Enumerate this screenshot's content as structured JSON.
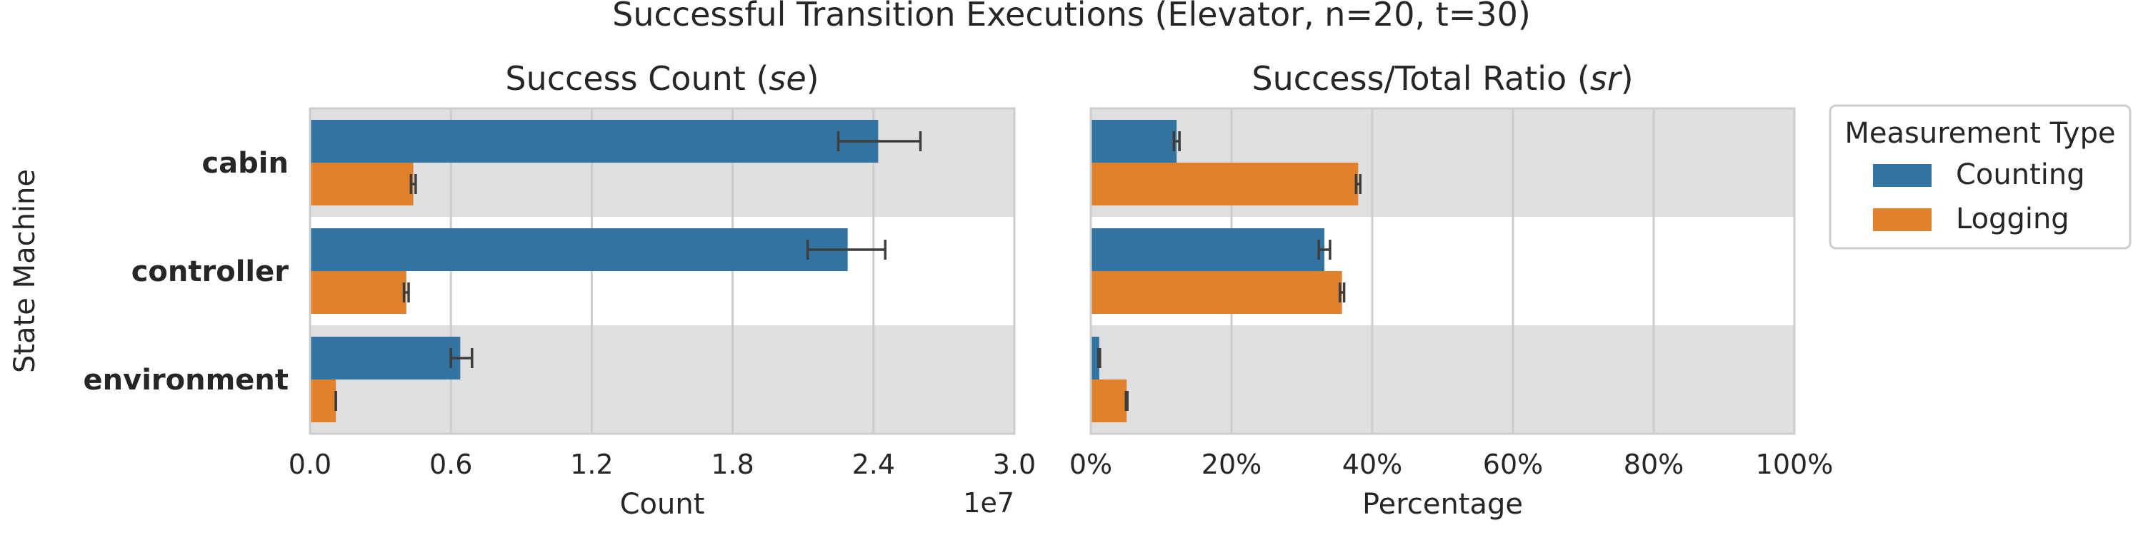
{
  "chart_data": {
    "suptitle": "Successful Transition Executions (Elevator, n=20, t=30)",
    "y_axis_label": "State Machine",
    "categories": [
      "cabin",
      "controller",
      "environment"
    ],
    "legend": {
      "title": "Measurement Type",
      "placement": "right",
      "entries": [
        {
          "label": "Counting",
          "color": "#3274a1"
        },
        {
          "label": "Logging",
          "color": "#e1812c"
        }
      ]
    },
    "panels": [
      {
        "type": "bar",
        "orientation": "horizontal",
        "title_prefix": "Success Count (",
        "title_italic": "se",
        "title_suffix": ")",
        "xlabel": "Count",
        "offset_label": "1e7",
        "xlim": [
          0,
          3.0
        ],
        "xticks": [
          0.0,
          0.6,
          1.2,
          1.8,
          2.4,
          3.0
        ],
        "xtick_labels": [
          "0.0",
          "0.6",
          "1.2",
          "1.8",
          "2.4",
          "3.0"
        ],
        "grid": true,
        "series": [
          {
            "name": "Counting",
            "values": [
              2.42,
              2.29,
              0.64
            ],
            "err_low": [
              2.25,
              2.12,
              0.6
            ],
            "err_high": [
              2.6,
              2.45,
              0.69
            ]
          },
          {
            "name": "Logging",
            "values": [
              0.44,
              0.41,
              0.11
            ],
            "err_low": [
              0.43,
              0.4,
              0.11
            ],
            "err_high": [
              0.45,
              0.42,
              0.11
            ]
          }
        ]
      },
      {
        "type": "bar",
        "orientation": "horizontal",
        "title_prefix": "Success/Total Ratio (",
        "title_italic": "sr",
        "title_suffix": ")",
        "xlabel": "Percentage",
        "offset_label": "",
        "xlim": [
          0,
          100
        ],
        "xticks": [
          0,
          20,
          40,
          60,
          80,
          100
        ],
        "xtick_labels": [
          "0%",
          "20%",
          "40%",
          "60%",
          "80%",
          "100%"
        ],
        "grid": true,
        "series": [
          {
            "name": "Counting",
            "values": [
              12.2,
              33.2,
              1.2
            ],
            "err_low": [
              11.8,
              32.4,
              1.1
            ],
            "err_high": [
              12.6,
              34.0,
              1.3
            ]
          },
          {
            "name": "Logging",
            "values": [
              38.0,
              35.7,
              5.1
            ],
            "err_low": [
              37.7,
              35.4,
              5.0
            ],
            "err_high": [
              38.3,
              36.0,
              5.2
            ]
          }
        ]
      }
    ]
  }
}
